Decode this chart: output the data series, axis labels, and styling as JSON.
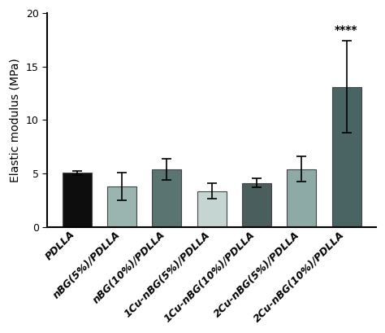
{
  "categories": [
    "PDLLA",
    "nBG(5%)/PDLLA",
    "nBG(10%)/PDLLA",
    "1Cu-nBG(5%)/PDLLA",
    "1Cu-nBG(10%)/PDLLA",
    "2Cu-nBG(5%)/PDLLA",
    "2Cu-nBG(10%)/PDLLA"
  ],
  "values": [
    5.05,
    3.8,
    5.4,
    3.35,
    4.1,
    5.4,
    13.1
  ],
  "errors": [
    0.2,
    1.3,
    1.0,
    0.7,
    0.4,
    1.2,
    4.3
  ],
  "bar_colors": [
    "#0d0d0d",
    "#9ab5af",
    "#5a7472",
    "#c5d5d2",
    "#4a5e5d",
    "#8eaaa6",
    "#4a6363"
  ],
  "ylabel": "Elastic modulus (MPa)",
  "ylim": [
    0,
    20
  ],
  "yticks": [
    0,
    5,
    10,
    15,
    20
  ],
  "significance_text": "****",
  "significance_idx": 6,
  "background_color": "#ffffff",
  "bar_width": 0.65,
  "xlabel_fontsize": 9,
  "ylabel_fontsize": 10,
  "ytick_fontsize": 9,
  "edgecolor": "#444444"
}
